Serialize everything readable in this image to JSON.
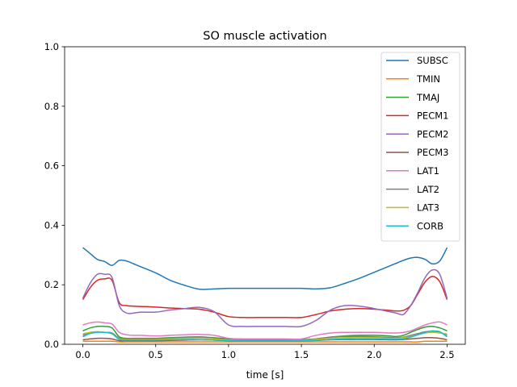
{
  "chart_data": {
    "type": "line",
    "title": "SO muscle activation",
    "xlabel": "time [s]",
    "ylabel": "",
    "xlim": [
      -0.125,
      2.625
    ],
    "ylim": [
      0,
      1.0
    ],
    "xticks": [
      0.0,
      0.5,
      1.0,
      1.5,
      2.0,
      2.5
    ],
    "xtick_labels": [
      "0.0",
      "0.5",
      "1.0",
      "1.5",
      "2.0",
      "2.5"
    ],
    "yticks": [
      0.0,
      0.2,
      0.4,
      0.6,
      0.8,
      1.0
    ],
    "ytick_labels": [
      "0.0",
      "0.2",
      "0.4",
      "0.6",
      "0.8",
      "1.0"
    ],
    "grid": false,
    "legend_position": "top-right",
    "x": [
      0.0,
      0.05,
      0.1,
      0.15,
      0.2,
      0.25,
      0.3,
      0.35,
      0.4,
      0.5,
      0.6,
      0.7,
      0.8,
      0.9,
      1.0,
      1.1,
      1.2,
      1.3,
      1.4,
      1.5,
      1.6,
      1.7,
      1.8,
      1.9,
      2.0,
      2.1,
      2.15,
      2.2,
      2.25,
      2.3,
      2.35,
      2.4,
      2.45,
      2.5
    ],
    "series": [
      {
        "name": "SUBSC",
        "color": "#1f77b4",
        "values": [
          0.325,
          0.305,
          0.285,
          0.278,
          0.265,
          0.282,
          0.28,
          0.27,
          0.26,
          0.24,
          0.215,
          0.198,
          0.185,
          0.186,
          0.188,
          0.188,
          0.188,
          0.188,
          0.188,
          0.188,
          0.186,
          0.19,
          0.205,
          0.222,
          0.242,
          0.262,
          0.272,
          0.282,
          0.29,
          0.292,
          0.285,
          0.27,
          0.28,
          0.325
        ]
      },
      {
        "name": "TMIN",
        "color": "#ff7f0e",
        "values": [
          0.01,
          0.01,
          0.01,
          0.01,
          0.01,
          0.008,
          0.008,
          0.008,
          0.008,
          0.008,
          0.008,
          0.008,
          0.008,
          0.008,
          0.008,
          0.008,
          0.008,
          0.008,
          0.008,
          0.008,
          0.008,
          0.008,
          0.008,
          0.008,
          0.008,
          0.008,
          0.008,
          0.008,
          0.008,
          0.008,
          0.01,
          0.01,
          0.01,
          0.01
        ]
      },
      {
        "name": "TMAJ",
        "color": "#2ca02c",
        "values": [
          0.045,
          0.055,
          0.06,
          0.06,
          0.055,
          0.025,
          0.02,
          0.02,
          0.02,
          0.02,
          0.022,
          0.024,
          0.025,
          0.022,
          0.018,
          0.016,
          0.016,
          0.016,
          0.016,
          0.016,
          0.018,
          0.024,
          0.028,
          0.03,
          0.03,
          0.028,
          0.026,
          0.03,
          0.04,
          0.05,
          0.058,
          0.06,
          0.055,
          0.045
        ]
      },
      {
        "name": "PECM1",
        "color": "#d62728",
        "values": [
          0.15,
          0.19,
          0.215,
          0.22,
          0.215,
          0.14,
          0.13,
          0.128,
          0.127,
          0.125,
          0.122,
          0.12,
          0.118,
          0.108,
          0.093,
          0.09,
          0.09,
          0.09,
          0.09,
          0.09,
          0.1,
          0.112,
          0.118,
          0.12,
          0.118,
          0.114,
          0.112,
          0.114,
          0.13,
          0.17,
          0.21,
          0.228,
          0.21,
          0.15
        ]
      },
      {
        "name": "PECM2",
        "color": "#9467bd",
        "values": [
          0.155,
          0.205,
          0.235,
          0.235,
          0.225,
          0.13,
          0.105,
          0.105,
          0.108,
          0.108,
          0.115,
          0.12,
          0.124,
          0.11,
          0.065,
          0.06,
          0.06,
          0.06,
          0.06,
          0.06,
          0.08,
          0.115,
          0.13,
          0.128,
          0.12,
          0.11,
          0.105,
          0.1,
          0.13,
          0.175,
          0.225,
          0.25,
          0.235,
          0.155
        ]
      },
      {
        "name": "PECM3",
        "color": "#8c564b",
        "values": [
          0.015,
          0.018,
          0.02,
          0.02,
          0.018,
          0.012,
          0.012,
          0.012,
          0.012,
          0.012,
          0.013,
          0.014,
          0.015,
          0.014,
          0.012,
          0.012,
          0.012,
          0.012,
          0.012,
          0.012,
          0.013,
          0.015,
          0.016,
          0.016,
          0.016,
          0.015,
          0.015,
          0.016,
          0.018,
          0.02,
          0.022,
          0.022,
          0.02,
          0.015
        ]
      },
      {
        "name": "LAT1",
        "color": "#e377c2",
        "values": [
          0.065,
          0.072,
          0.075,
          0.072,
          0.068,
          0.04,
          0.032,
          0.03,
          0.03,
          0.028,
          0.03,
          0.032,
          0.033,
          0.03,
          0.02,
          0.018,
          0.018,
          0.018,
          0.018,
          0.018,
          0.03,
          0.038,
          0.04,
          0.04,
          0.04,
          0.038,
          0.038,
          0.04,
          0.045,
          0.055,
          0.065,
          0.072,
          0.075,
          0.065
        ]
      },
      {
        "name": "LAT2",
        "color": "#7f7f7f",
        "values": [
          0.03,
          0.04,
          0.042,
          0.04,
          0.038,
          0.02,
          0.018,
          0.018,
          0.018,
          0.018,
          0.02,
          0.022,
          0.024,
          0.02,
          0.014,
          0.013,
          0.013,
          0.013,
          0.013,
          0.013,
          0.018,
          0.024,
          0.026,
          0.026,
          0.025,
          0.023,
          0.022,
          0.024,
          0.03,
          0.036,
          0.042,
          0.044,
          0.04,
          0.03
        ]
      },
      {
        "name": "LAT3",
        "color": "#bcbd22",
        "values": [
          0.035,
          0.04,
          0.042,
          0.04,
          0.035,
          0.018,
          0.016,
          0.016,
          0.016,
          0.016,
          0.018,
          0.02,
          0.021,
          0.018,
          0.014,
          0.013,
          0.013,
          0.013,
          0.013,
          0.013,
          0.016,
          0.02,
          0.022,
          0.022,
          0.022,
          0.02,
          0.02,
          0.022,
          0.026,
          0.032,
          0.038,
          0.04,
          0.038,
          0.035
        ]
      },
      {
        "name": "CORB",
        "color": "#17becf",
        "values": [
          0.025,
          0.036,
          0.04,
          0.04,
          0.036,
          0.016,
          0.014,
          0.014,
          0.014,
          0.014,
          0.015,
          0.016,
          0.016,
          0.014,
          0.012,
          0.012,
          0.012,
          0.012,
          0.012,
          0.012,
          0.013,
          0.016,
          0.018,
          0.018,
          0.018,
          0.017,
          0.017,
          0.018,
          0.024,
          0.032,
          0.04,
          0.045,
          0.042,
          0.025
        ]
      }
    ]
  }
}
